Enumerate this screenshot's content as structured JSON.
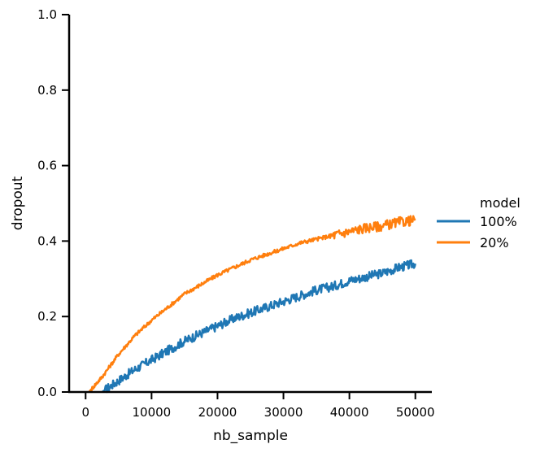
{
  "chart_data": {
    "type": "line",
    "xlabel": "nb_sample",
    "ylabel": "dropout",
    "xlim": [
      -2500,
      52500
    ],
    "ylim": [
      0.0,
      1.0
    ],
    "xticks": [
      0,
      10000,
      20000,
      30000,
      40000,
      50000
    ],
    "yticks": [
      0.0,
      0.2,
      0.4,
      0.6,
      0.8,
      1.0
    ],
    "xtick_labels": [
      "0",
      "10000",
      "20000",
      "30000",
      "40000",
      "50000"
    ],
    "ytick_labels": [
      "0.0",
      "0.2",
      "0.4",
      "0.6",
      "0.8",
      "1.0"
    ],
    "grid": false,
    "legend": {
      "title": "model",
      "placement": "right"
    },
    "series": [
      {
        "name": "100%",
        "color": "#1f77b4",
        "x": [
          2500,
          5000,
          7500,
          10000,
          12500,
          15000,
          17500,
          20000,
          22500,
          25000,
          27500,
          30000,
          32500,
          35000,
          37500,
          40000,
          42500,
          45000,
          47500,
          50000
        ],
        "values": [
          0.0,
          0.03,
          0.06,
          0.085,
          0.11,
          0.135,
          0.155,
          0.175,
          0.195,
          0.21,
          0.225,
          0.24,
          0.255,
          0.27,
          0.28,
          0.295,
          0.305,
          0.315,
          0.33,
          0.34
        ]
      },
      {
        "name": "20%",
        "color": "#ff7f0e",
        "x": [
          500,
          2500,
          5000,
          7500,
          10000,
          12500,
          15000,
          17500,
          20000,
          22500,
          25000,
          27500,
          30000,
          32500,
          35000,
          37500,
          40000,
          42500,
          45000,
          47500,
          50000
        ],
        "values": [
          0.0,
          0.04,
          0.1,
          0.15,
          0.19,
          0.225,
          0.26,
          0.285,
          0.31,
          0.33,
          0.35,
          0.365,
          0.38,
          0.395,
          0.405,
          0.415,
          0.425,
          0.435,
          0.44,
          0.45,
          0.455
        ]
      }
    ]
  }
}
